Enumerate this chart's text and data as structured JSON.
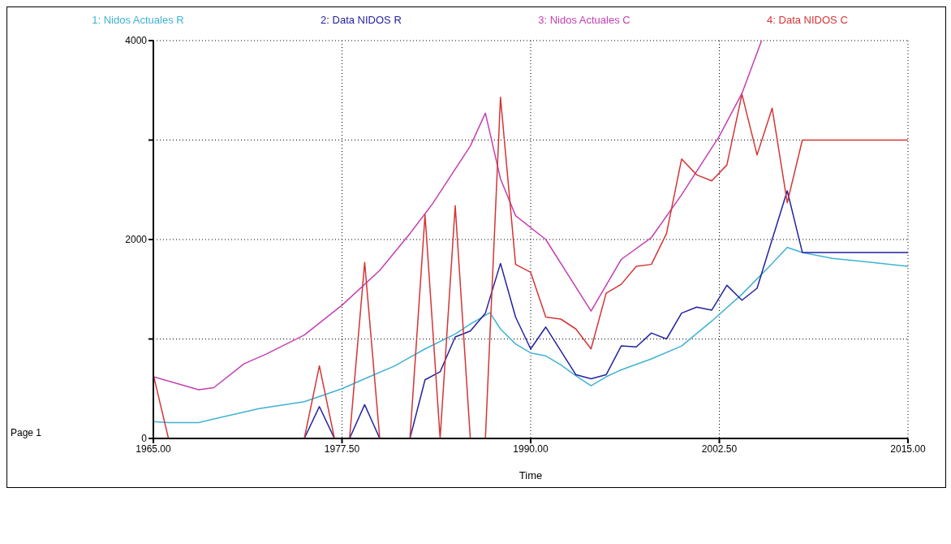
{
  "chart_data": {
    "type": "line",
    "xlabel": "Time",
    "xlim": [
      1965,
      2015
    ],
    "xticks": [
      {
        "value": 1965,
        "label": "1965.00"
      },
      {
        "value": 1977.5,
        "label": "1977.50"
      },
      {
        "value": 1990,
        "label": "1990.00"
      },
      {
        "value": 2002.5,
        "label": "2002.50"
      },
      {
        "value": 2015,
        "label": "2015.00"
      }
    ],
    "ylim": [
      0,
      4000
    ],
    "yticks": [
      0,
      {
        "value": 1000,
        "label": null
      },
      2000,
      {
        "value": 3000,
        "label": null
      },
      4000
    ],
    "grid": true,
    "legend": "top",
    "marker": "none",
    "line_style": "solid",
    "annotations": [
      "Page 1"
    ],
    "series": [
      {
        "name": "1: Nidos Actuales R",
        "color": "#3fb2d4",
        "x": [
          1965,
          1966,
          1967,
          1968,
          1970,
          1972,
          1975,
          1977.5,
          1979,
          1981,
          1983,
          1985,
          1986,
          1987.3,
          1988,
          1989,
          1990,
          1991,
          1992,
          1993,
          1994,
          1995,
          1996,
          1998,
          2000,
          2002,
          2004,
          2006,
          2007,
          2008,
          2010,
          2012,
          2015
        ],
        "values": [
          170,
          160,
          160,
          160,
          230,
          300,
          370,
          500,
          600,
          730,
          900,
          1050,
          1150,
          1265,
          1100,
          950,
          860,
          830,
          740,
          630,
          530,
          620,
          690,
          800,
          930,
          1180,
          1450,
          1760,
          1920,
          1870,
          1810,
          1780,
          1730
        ]
      },
      {
        "name": "2: Data NIDOS R",
        "color": "#2222a0",
        "x": [
          1965,
          1975,
          1976,
          1977,
          1978,
          1979,
          1980,
          1982,
          1983,
          1984,
          1985,
          1986,
          1987,
          1988,
          1989,
          1990,
          1991,
          1993,
          1994,
          1995,
          1996,
          1997,
          1998,
          1999,
          2000,
          2001,
          2002,
          2003,
          2004,
          2005,
          2007,
          2008,
          2015
        ],
        "values": [
          0,
          0,
          320,
          0,
          0,
          340,
          0,
          0,
          590,
          670,
          1020,
          1080,
          1260,
          1760,
          1220,
          900,
          1120,
          640,
          600,
          640,
          930,
          920,
          1060,
          1000,
          1260,
          1320,
          1290,
          1540,
          1390,
          1510,
          2490,
          1870,
          1870
        ]
      },
      {
        "name": "3: Nidos Actuales C",
        "color": "#c33fb3",
        "x": [
          1965,
          1968,
          1969,
          1971,
          1972.5,
          1975,
          1977.5,
          1980,
          1982,
          1983.5,
          1986,
          1987,
          1988,
          1989,
          1991,
          1994,
          1996,
          1998,
          2000,
          2002.5,
          2004,
          2005.3
        ],
        "values": [
          620,
          490,
          510,
          750,
          850,
          1040,
          1340,
          1690,
          2060,
          2360,
          2940,
          3270,
          2610,
          2240,
          2000,
          1280,
          1800,
          2020,
          2450,
          3040,
          3470,
          4000
        ]
      },
      {
        "name": "4: Data NIDOS C",
        "color": "#d43535",
        "x": [
          1965,
          1966,
          1975,
          1976,
          1977,
          1978,
          1979,
          1980,
          1982,
          1983,
          1984,
          1985,
          1986,
          1987,
          1988,
          1989,
          1990,
          1991,
          1992,
          1993,
          1994,
          1995,
          1996,
          1997,
          1998,
          1999,
          2000,
          2001,
          2002,
          2003,
          2004,
          2005,
          2006,
          2007,
          2008,
          2015
        ],
        "values": [
          640,
          0,
          0,
          730,
          0,
          0,
          1770,
          0,
          0,
          2250,
          0,
          2340,
          0,
          0,
          3430,
          1750,
          1670,
          1220,
          1200,
          1100,
          900,
          1460,
          1550,
          1730,
          1750,
          2060,
          2810,
          2650,
          2590,
          2750,
          3460,
          2850,
          3320,
          2370,
          3000,
          3000
        ]
      }
    ]
  }
}
